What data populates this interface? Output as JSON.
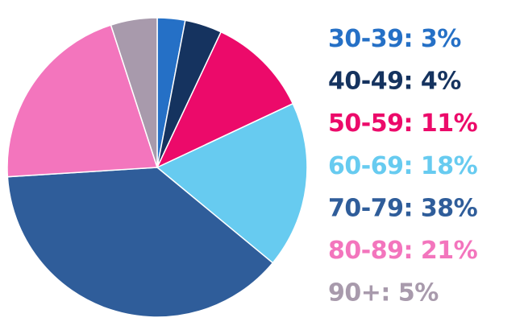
{
  "chart_data": {
    "type": "pie",
    "title": "",
    "slices": [
      {
        "label": "30-39",
        "value": 3,
        "text": "30-39: 3%",
        "color": "#2570c6"
      },
      {
        "label": "40-49",
        "value": 4,
        "text": "40-49: 4%",
        "color": "#15335f"
      },
      {
        "label": "50-59",
        "value": 11,
        "text": "50-59: 11%",
        "color": "#ec0a6a"
      },
      {
        "label": "60-69",
        "value": 18,
        "text": "60-69: 18%",
        "color": "#67cbf0"
      },
      {
        "label": "70-79",
        "value": 38,
        "text": "70-79: 38%",
        "color": "#2f5d9a"
      },
      {
        "label": "80-89",
        "value": 21,
        "text": "80-89: 21%",
        "color": "#f375bd"
      },
      {
        "label": "90+",
        "value": 5,
        "text": "90+: 5%",
        "color": "#a89aac"
      }
    ],
    "start": "12 o'clock",
    "direction": "clockwise",
    "legend_position": "right"
  }
}
